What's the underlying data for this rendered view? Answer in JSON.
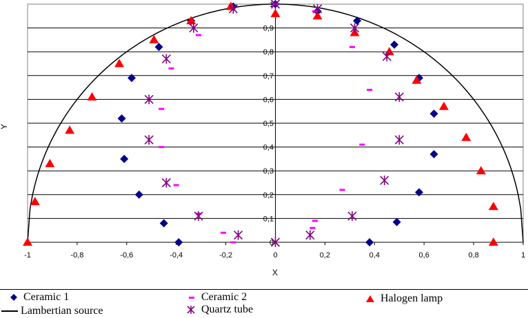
{
  "chart_data": {
    "type": "scatter",
    "xlabel": "X",
    "ylabel": "Y",
    "xlim": [
      -1,
      1
    ],
    "ylim": [
      0,
      1
    ],
    "xticks": [
      "-1",
      "-0,8",
      "-0,6",
      "-0,4",
      "-0,2",
      "0",
      "0,2",
      "0,4",
      "0,6",
      "0,8",
      "1"
    ],
    "yticks": [
      "0",
      "0,1",
      "0,2",
      "0,3",
      "0,4",
      "0,5",
      "0,6",
      "0,7",
      "0,8",
      "0,9",
      "1"
    ],
    "grid": "horizontal",
    "legend_position": "bottom",
    "series": [
      {
        "name": "Ceramic 1",
        "marker": "diamond",
        "color": "#00008b",
        "points": [
          [
            -0.39,
            0
          ],
          [
            -0.45,
            0.08
          ],
          [
            -0.55,
            0.2
          ],
          [
            -0.61,
            0.35
          ],
          [
            -0.62,
            0.52
          ],
          [
            -0.58,
            0.69
          ],
          [
            -0.47,
            0.82
          ],
          [
            -0.34,
            0.93
          ],
          [
            -0.17,
            0.99
          ],
          [
            0,
            1
          ],
          [
            0.17,
            0.97
          ],
          [
            0.33,
            0.93
          ],
          [
            0.48,
            0.83
          ],
          [
            0.58,
            0.69
          ],
          [
            0.64,
            0.54
          ],
          [
            0.64,
            0.37
          ],
          [
            0.58,
            0.21
          ],
          [
            0.49,
            0.085
          ],
          [
            0.38,
            0
          ]
        ]
      },
      {
        "name": "Ceramic 2",
        "marker": "dash",
        "color": "#ff00ff",
        "points": [
          [
            -0.17,
            0
          ],
          [
            -0.21,
            0.04
          ],
          [
            -0.31,
            0.12
          ],
          [
            -0.4,
            0.24
          ],
          [
            -0.46,
            0.4
          ],
          [
            -0.46,
            0.56
          ],
          [
            -0.42,
            0.73
          ],
          [
            -0.31,
            0.87
          ],
          [
            -0.18,
            0.98
          ],
          [
            0,
            1
          ],
          [
            0.16,
            0.97
          ],
          [
            0.31,
            0.82
          ],
          [
            0.38,
            0.64
          ],
          [
            0.35,
            0.41
          ],
          [
            0.27,
            0.22
          ],
          [
            0.16,
            0.09
          ],
          [
            0.15,
            0.06
          ]
        ]
      },
      {
        "name": "Halogen lamp",
        "marker": "triangle",
        "color": "#ff0000",
        "points": [
          [
            -1,
            0
          ],
          [
            -0.97,
            0.17
          ],
          [
            -0.91,
            0.33
          ],
          [
            -0.83,
            0.47
          ],
          [
            -0.74,
            0.61
          ],
          [
            -0.63,
            0.75
          ],
          [
            -0.49,
            0.85
          ],
          [
            -0.34,
            0.93
          ],
          [
            -0.18,
            0.99
          ],
          [
            0,
            0.96
          ],
          [
            0.17,
            0.95
          ],
          [
            0.32,
            0.88
          ],
          [
            0.46,
            0.8
          ],
          [
            0.57,
            0.68
          ],
          [
            0.68,
            0.57
          ],
          [
            0.77,
            0.44
          ],
          [
            0.83,
            0.3
          ],
          [
            0.88,
            0.15
          ],
          [
            0.88,
            0
          ]
        ]
      },
      {
        "name": "Quartz tube",
        "marker": "star",
        "color": "#800080",
        "points": [
          [
            -0.15,
            0.03
          ],
          [
            -0.31,
            0.11
          ],
          [
            -0.44,
            0.25
          ],
          [
            -0.51,
            0.43
          ],
          [
            -0.51,
            0.6
          ],
          [
            -0.44,
            0.77
          ],
          [
            -0.33,
            0.9
          ],
          [
            -0.17,
            0.98
          ],
          [
            0,
            1
          ],
          [
            0.17,
            0.98
          ],
          [
            0.32,
            0.9
          ],
          [
            0.45,
            0.78
          ],
          [
            0.5,
            0.61
          ],
          [
            0.5,
            0.43
          ],
          [
            0.44,
            0.26
          ],
          [
            0.31,
            0.11
          ],
          [
            0.14,
            0.03
          ],
          [
            0,
            0
          ]
        ]
      },
      {
        "name": "Lambertian source",
        "marker": "line",
        "color": "#000000",
        "function": "y = sqrt(1 - x^2)"
      }
    ]
  },
  "legend": {
    "ceramic1": "Ceramic 1",
    "ceramic2": "Ceramic 2",
    "halogen": "Halogen lamp",
    "lambertian": "Lambertian source",
    "quartz": "Quartz tube"
  }
}
